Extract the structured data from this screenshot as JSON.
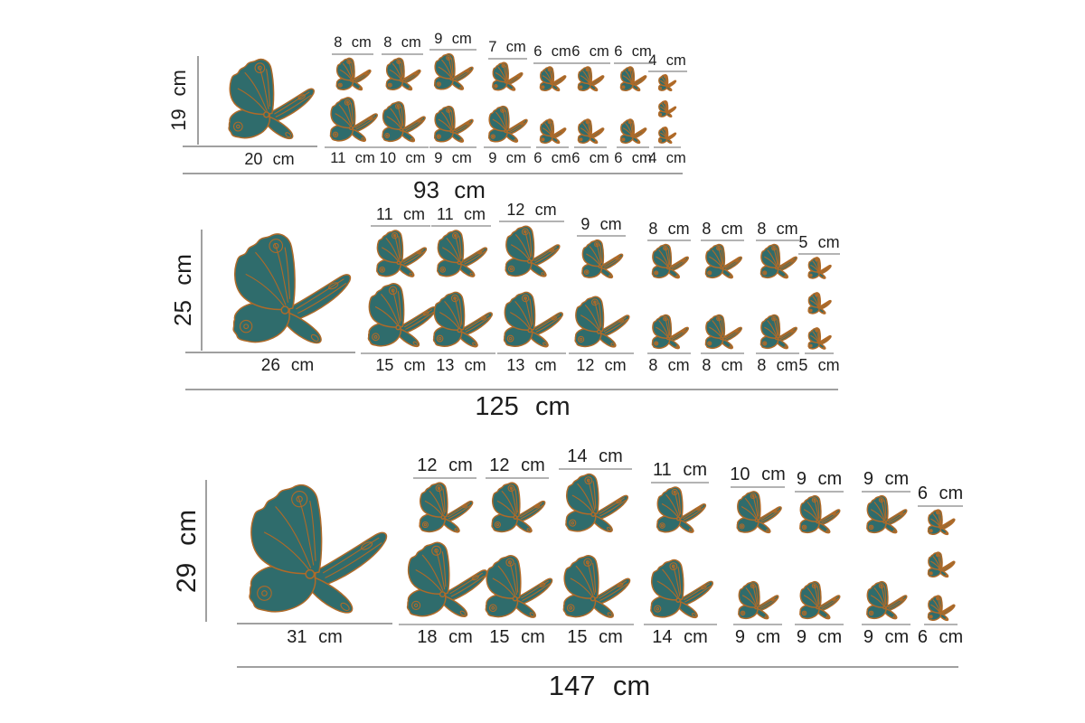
{
  "colors": {
    "background": "#FFFFFF",
    "butterfly_fill": "#2F6C6C",
    "butterfly_outline": "#B06A28",
    "label_text": "#1D1D1D",
    "dimension_line": "#A0A0A0",
    "underline": "#B3B3B3"
  },
  "groups": [
    {
      "height_label": "19 cm",
      "large_width_label": "20 cm",
      "total_width_label": "93 cm",
      "columns": [
        {
          "top_label": "8 cm",
          "bottom_label": "11 cm"
        },
        {
          "top_label": "8 cm",
          "bottom_label": "10 cm"
        },
        {
          "top_label": "9 cm",
          "bottom_label": "9 cm"
        },
        {
          "top_label": "7 cm",
          "bottom_label": "9 cm"
        },
        {
          "top_label": "6 cm",
          "bottom_label": "6 cm"
        },
        {
          "top_label": "6 cm",
          "bottom_label": "6 cm"
        },
        {
          "top_label": "6 cm",
          "bottom_label": "6 cm"
        },
        {
          "top_label": "4 cm",
          "bottom_label": "4 cm",
          "stack_count": 3
        }
      ]
    },
    {
      "height_label": "25 cm",
      "large_width_label": "26 cm",
      "total_width_label": "125 cm",
      "columns": [
        {
          "top_label": "11 cm",
          "bottom_label": "15 cm"
        },
        {
          "top_label": "11 cm",
          "bottom_label": "13 cm"
        },
        {
          "top_label": "12 cm",
          "bottom_label": "13 cm"
        },
        {
          "top_label": "9 cm",
          "bottom_label": "12 cm"
        },
        {
          "top_label": "8 cm",
          "bottom_label": "8 cm"
        },
        {
          "top_label": "8 cm",
          "bottom_label": "8 cm"
        },
        {
          "top_label": "8 cm",
          "bottom_label": "8 cm"
        },
        {
          "top_label": "5 cm",
          "bottom_label": "5 cm",
          "stack_count": 3
        }
      ]
    },
    {
      "height_label": "29 cm",
      "large_width_label": "31 cm",
      "total_width_label": "147 cm",
      "columns": [
        {
          "top_label": "12 cm",
          "bottom_label": "18 cm"
        },
        {
          "top_label": "12 cm",
          "bottom_label": "15 cm"
        },
        {
          "top_label": "14 cm",
          "bottom_label": "15 cm"
        },
        {
          "top_label": "11 cm",
          "bottom_label": "14 cm"
        },
        {
          "top_label": "10 cm",
          "bottom_label": "9 cm"
        },
        {
          "top_label": "9 cm",
          "bottom_label": "9 cm"
        },
        {
          "top_label": "9 cm",
          "bottom_label": "9 cm"
        },
        {
          "top_label": "6 cm",
          "bottom_label": "6 cm",
          "stack_count": 3
        }
      ]
    }
  ]
}
